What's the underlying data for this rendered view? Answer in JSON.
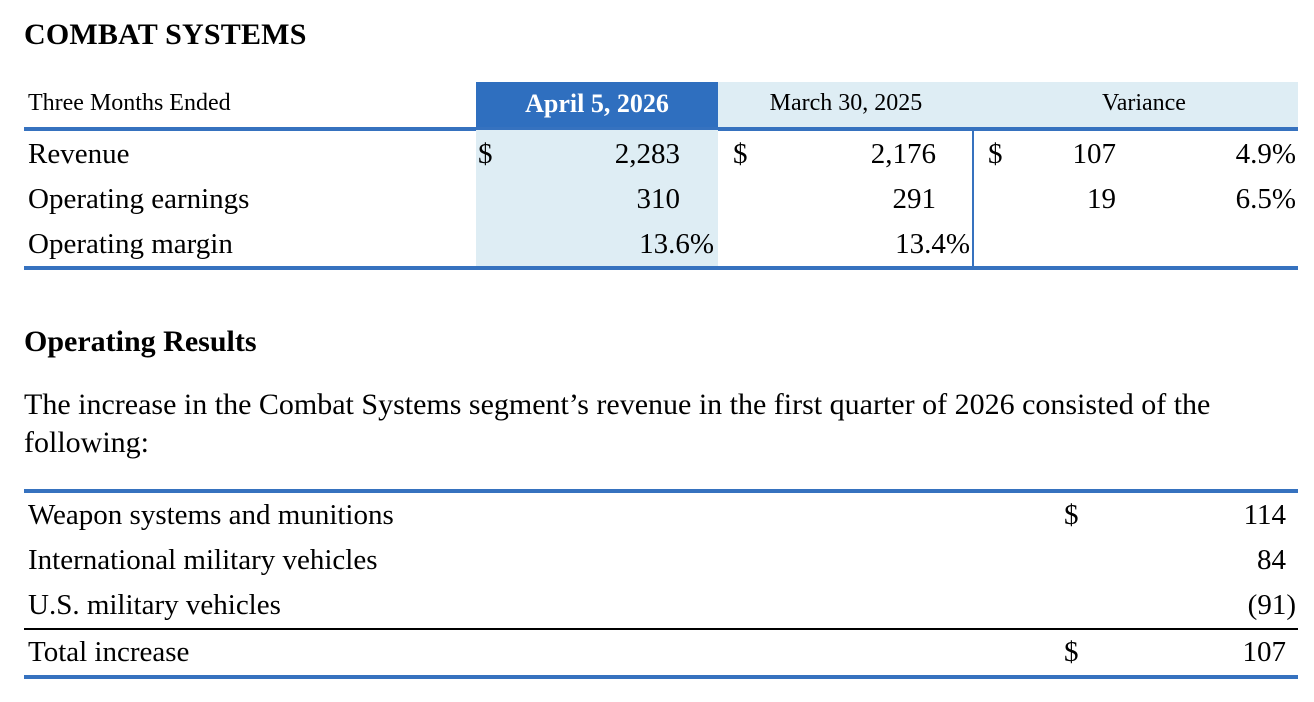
{
  "title": "COMBAT SYSTEMS",
  "summary_table": {
    "period_label": "Three Months Ended",
    "col_current": "April 5, 2026",
    "col_prior": "March 30, 2025",
    "col_variance": "Variance",
    "rows": [
      {
        "label": "Revenue",
        "cur_sym": "$",
        "cur": "2,283",
        "prior_sym": "$",
        "prior": "2,176",
        "var_sym": "$",
        "var": "107",
        "var_pct": "4.9%"
      },
      {
        "label": "Operating earnings",
        "cur_sym": "",
        "cur": "310",
        "prior_sym": "",
        "prior": "291",
        "var_sym": "",
        "var": "19",
        "var_pct": "6.5%"
      },
      {
        "label": "Operating margin",
        "cur_sym": "",
        "cur": "13.6%",
        "prior_sym": "",
        "prior": "13.4%",
        "var_sym": "",
        "var": "",
        "var_pct": ""
      }
    ]
  },
  "section_heading": "Operating Results",
  "paragraph": "The increase in the Combat Systems segment’s revenue in the first quarter of 2026 consisted of the following:",
  "increase_table": {
    "rows": [
      {
        "label": "Weapon systems and munitions",
        "sym": "$",
        "value": "114"
      },
      {
        "label": "International military vehicles",
        "sym": "",
        "value": "84"
      },
      {
        "label": "U.S. military vehicles",
        "sym": "",
        "value": "(91)"
      }
    ],
    "total": {
      "label": "Total increase",
      "sym": "$",
      "value": "107"
    }
  },
  "colors": {
    "accent_blue": "#3672bf",
    "header_blue": "#2f6fbf",
    "light_blue": "#deedf4"
  }
}
